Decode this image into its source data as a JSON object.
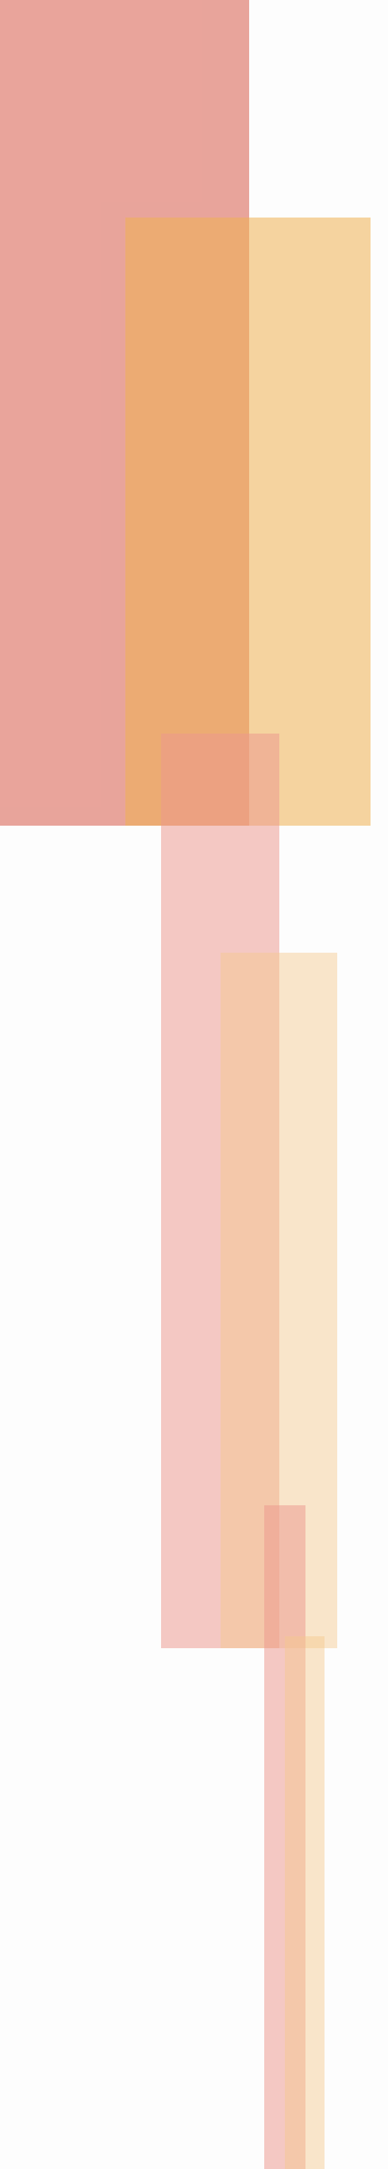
{
  "canvas": {
    "background": "#fdfdfd"
  },
  "colors": {
    "salmon": "#dc6e5f",
    "orange": "#eeb052",
    "pale_pink": "#ec988e",
    "pale_peach": "#f5c88c"
  },
  "blocks": [
    {
      "name": "large-salmon-block",
      "color": "salmon"
    },
    {
      "name": "large-orange-block",
      "color": "orange"
    },
    {
      "name": "medium-pink-block",
      "color": "pale_pink"
    },
    {
      "name": "medium-peach-block",
      "color": "pale_peach"
    },
    {
      "name": "narrow-pink-block",
      "color": "pale_pink"
    },
    {
      "name": "narrow-peach-block",
      "color": "pale_peach"
    }
  ]
}
